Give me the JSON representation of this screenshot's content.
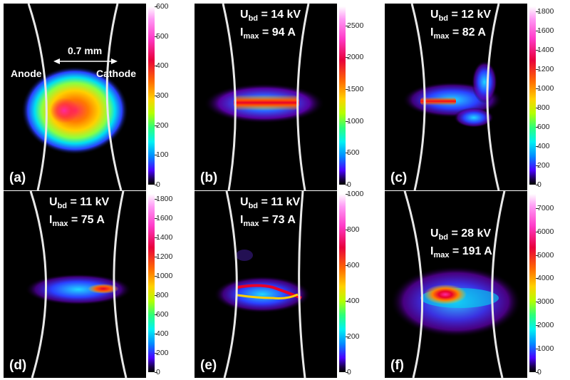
{
  "panels": [
    {
      "id": "a",
      "label": "(a)",
      "ubd": "",
      "imax": "",
      "ticks": [
        "600",
        "500",
        "400",
        "300",
        "200",
        "100",
        "0"
      ],
      "anode": "Anode",
      "cathode": "Cathode",
      "gap": "0.7 mm"
    },
    {
      "id": "b",
      "label": "(b)",
      "ubd": "14 kV",
      "imax": "94 A",
      "ticks": [
        "2500",
        "2000",
        "1500",
        "1000",
        "500",
        "0"
      ]
    },
    {
      "id": "c",
      "label": "(c)",
      "ubd": "12 kV",
      "imax": "82 A",
      "ticks": [
        "1800",
        "1600",
        "1400",
        "1200",
        "1000",
        "800",
        "600",
        "400",
        "200",
        "0"
      ]
    },
    {
      "id": "d",
      "label": "(d)",
      "ubd": "11 kV",
      "imax": "75 A",
      "ticks": [
        "1800",
        "1600",
        "1400",
        "1200",
        "1000",
        "800",
        "600",
        "400",
        "200",
        "0"
      ]
    },
    {
      "id": "e",
      "label": "(e)",
      "ubd": "11 kV",
      "imax": "73 A",
      "ticks": [
        "1000",
        "800",
        "600",
        "400",
        "200",
        "0"
      ]
    },
    {
      "id": "f",
      "label": "(f)",
      "ubd": "28 kV",
      "imax": "191 A",
      "ticks": [
        "7000",
        "6000",
        "5000",
        "4000",
        "3000",
        "2000",
        "1000",
        "0"
      ]
    }
  ],
  "symbols": {
    "u": "U",
    "bd": "bd",
    "i": "I",
    "max": "max",
    "eq": " = "
  }
}
